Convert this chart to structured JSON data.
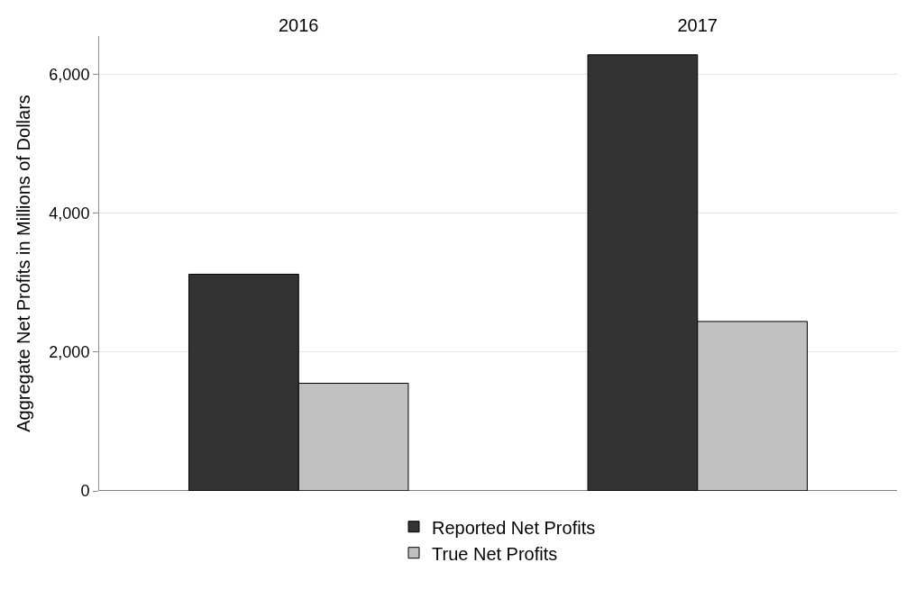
{
  "chart_data": {
    "type": "bar",
    "ylabel": "Aggregate Net Profits in Millions of Dollars",
    "categories": [
      "2016",
      "2017"
    ],
    "series": [
      {
        "name": "Reported Net Profits",
        "color": "#333333",
        "values": [
          3120,
          6280
        ]
      },
      {
        "name": "True Net Profits",
        "color": "#c0c0c0",
        "values": [
          1550,
          2440
        ]
      }
    ],
    "ylim": [
      0,
      6550
    ],
    "yticks": [
      0,
      {
        "value": 2000,
        "label": "2,000"
      },
      {
        "value": 4000,
        "label": "4,000"
      },
      {
        "value": 6000,
        "label": "6,000"
      }
    ],
    "grid": "y",
    "legend": "bottom"
  }
}
